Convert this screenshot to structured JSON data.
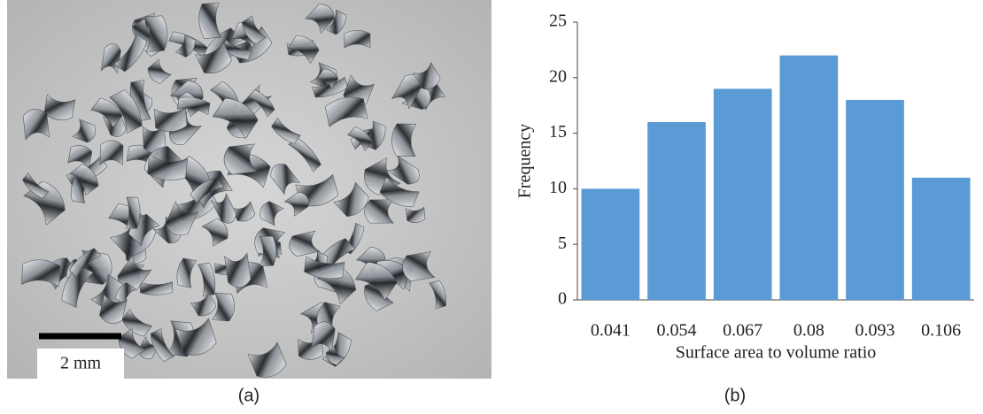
{
  "photo": {
    "scale_label": "2 mm",
    "caption": "(a)"
  },
  "chart_data": {
    "type": "bar",
    "caption": "(b)",
    "xlabel": "Surface area to volume ratio",
    "ylabel": "Frequency",
    "categories": [
      "0.041",
      "0.054",
      "0.067",
      "0.08",
      "0.093",
      "0.106"
    ],
    "values": [
      10,
      16,
      19,
      22,
      18,
      11
    ],
    "color": "#5b9bd5",
    "ylim": [
      0,
      25
    ],
    "yticks": [
      0,
      5,
      10,
      15,
      20,
      25
    ],
    "grid": false
  }
}
